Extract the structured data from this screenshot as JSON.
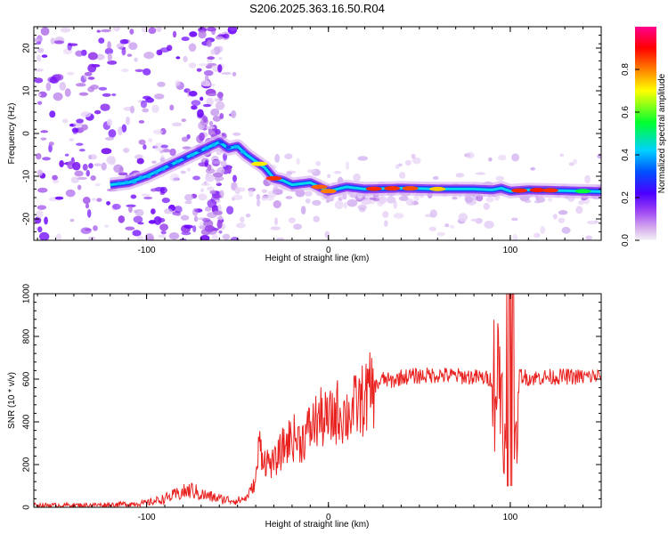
{
  "title": "S206.2025.363.16.50.R04",
  "chart_data": [
    {
      "type": "heatmap",
      "name": "spectrogram",
      "xlabel": "Height of straight line (km)",
      "ylabel": "Frequency (Hz)",
      "xlim": [
        -162,
        150
      ],
      "ylim": [
        -25,
        25
      ],
      "xticks": [
        -100,
        0,
        100
      ],
      "xtick_labels": [
        "-100",
        "0",
        "100"
      ],
      "yticks": [
        -20,
        -10,
        0,
        10,
        20
      ],
      "ytick_labels": [
        "-20",
        "-10",
        "0",
        "10",
        "20"
      ],
      "ridge": {
        "x": [
          -120,
          -110,
          -100,
          -90,
          -80,
          -70,
          -60,
          -55,
          -50,
          -45,
          -40,
          -35,
          -30,
          -25,
          -20,
          -10,
          0,
          10,
          20,
          40,
          60,
          80,
          90,
          95,
          100,
          110,
          120,
          130,
          140,
          150
        ],
        "y": [
          -12,
          -11.5,
          -10,
          -8,
          -6,
          -4,
          -2,
          -3.5,
          -3,
          -5,
          -6.5,
          -8,
          -10.5,
          -11,
          -12,
          -11.5,
          -13.5,
          -12.5,
          -13,
          -12.8,
          -13,
          -13,
          -13.2,
          -12.8,
          -13.5,
          -13.2,
          -13.3,
          -13.4,
          -13.5,
          -13.6
        ]
      },
      "colorbar": {
        "label": "Normalized spectral amplitude",
        "range": [
          0,
          1
        ],
        "ticks": [
          0.0,
          0.2,
          0.4,
          0.6,
          0.8
        ],
        "tick_labels": [
          "0.0",
          "0.2",
          "0.4",
          "0.6",
          "0.8"
        ]
      }
    },
    {
      "type": "line",
      "name": "snr",
      "xlabel": "Height of straight line (km)",
      "ylabel": "SNR (10 * v/v)",
      "xlim": [
        -162,
        150
      ],
      "ylim": [
        0,
        1000
      ],
      "xticks": [
        -100,
        0,
        100
      ],
      "xtick_labels": [
        "-100",
        "0",
        "100"
      ],
      "yticks": [
        0,
        200,
        400,
        600,
        800,
        1000
      ],
      "ytick_labels": [
        "0",
        "200",
        "400",
        "600",
        "800",
        "1000"
      ],
      "color": "#e8201e",
      "series": [
        {
          "name": "SNR",
          "x": [
            -162,
            -140,
            -120,
            -100,
            -90,
            -80,
            -75,
            -70,
            -60,
            -50,
            -45,
            -40,
            -38,
            -35,
            -30,
            -25,
            -20,
            -15,
            -10,
            -5,
            0,
            5,
            10,
            15,
            20,
            25,
            30,
            35,
            40,
            50,
            60,
            70,
            80,
            90,
            95,
            98,
            100,
            102,
            105,
            110,
            120,
            130,
            140,
            150
          ],
          "values": [
            10,
            10,
            12,
            20,
            40,
            70,
            80,
            60,
            40,
            30,
            45,
            120,
            300,
            220,
            200,
            280,
            330,
            310,
            370,
            420,
            400,
            450,
            430,
            470,
            510,
            560,
            600,
            590,
            610,
            615,
            620,
            615,
            610,
            600,
            620,
            150,
            1000,
            120,
            620,
            605,
            610,
            612,
            610,
            615
          ]
        }
      ]
    }
  ],
  "colors": {
    "line": "#e8201e",
    "colorbar_stops": [
      "#f4f4f4",
      "#c98de8",
      "#7b00ff",
      "#0040ff",
      "#00ccff",
      "#00ff40",
      "#ffff00",
      "#ff8000",
      "#ff0000",
      "#ff00a0"
    ]
  }
}
